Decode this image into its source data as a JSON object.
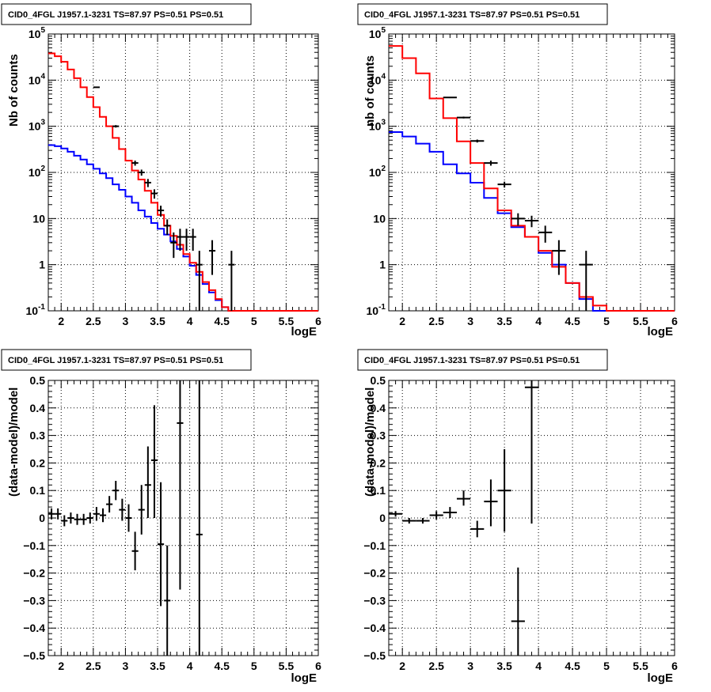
{
  "panel_title": "CID0_4FGL J1957.1-3231 TS=87.97 PS=0.51 PS=0.51",
  "colors": {
    "data": "#000000",
    "blue_model": "#0000ff",
    "red_model": "#ff0000",
    "grid": "#000000"
  },
  "chart_data": [
    {
      "type": "line",
      "title": "CID0_4FGL J1957.1-3231 TS=87.97 PS=0.51 PS=0.51",
      "xlabel": "logE",
      "ylabel": "Nb of counts",
      "xlim": [
        1.8,
        6.0
      ],
      "ylim": [
        0.1,
        100000
      ],
      "yscale": "log",
      "grid": true,
      "x_ticks": [
        "2",
        "2.5",
        "3",
        "3.5",
        "4",
        "4.5",
        "5",
        "5.5",
        "6"
      ],
      "y_ticks": [
        "10^-1",
        "1",
        "10",
        "10^2",
        "10^3",
        "10^4",
        "10^5"
      ],
      "series": [
        {
          "style": "histogram",
          "color": "blue",
          "edges": [
            1.8,
            1.9,
            2.0,
            2.1,
            2.2,
            2.3,
            2.4,
            2.5,
            2.6,
            2.7,
            2.8,
            2.9,
            3.0,
            3.1,
            3.2,
            3.3,
            3.4,
            3.5,
            3.6,
            3.7,
            3.8,
            3.9,
            4.0,
            4.1,
            4.2,
            4.3,
            4.4,
            4.5,
            4.6,
            4.7,
            4.8,
            6.0
          ],
          "values": [
            390,
            370,
            330,
            280,
            230,
            190,
            150,
            120,
            95,
            75,
            55,
            42,
            30,
            22,
            15,
            11,
            8,
            6,
            4.5,
            3.2,
            2.2,
            1.5,
            0.95,
            0.6,
            0.38,
            0.25,
            0.17,
            0.12,
            0.1,
            0.1,
            0.1
          ]
        },
        {
          "style": "histogram",
          "color": "red",
          "edges": [
            1.8,
            1.9,
            2.0,
            2.1,
            2.2,
            2.3,
            2.4,
            2.5,
            2.6,
            2.7,
            2.8,
            2.9,
            3.0,
            3.1,
            3.2,
            3.3,
            3.4,
            3.5,
            3.6,
            3.7,
            3.8,
            3.9,
            4.0,
            4.1,
            4.2,
            4.3,
            4.4,
            4.5,
            4.6,
            4.7,
            4.8,
            6.0
          ],
          "values": [
            38000,
            33000,
            25000,
            17000,
            11000,
            7000,
            4300,
            2600,
            1600,
            1000,
            560,
            320,
            180,
            110,
            70,
            40,
            22,
            12,
            7,
            4.2,
            2.7,
            1.7,
            1.1,
            0.7,
            0.42,
            0.28,
            0.18,
            0.12,
            0.1,
            0.1,
            0.1
          ]
        },
        {
          "style": "errorbars",
          "color": "black",
          "points": [
            {
              "x": 2.55,
              "y": 7000,
              "xerr": 0.05,
              "ylo": 6840,
              "yhi": 7160
            },
            {
              "x": 2.85,
              "y": 1000,
              "xerr": 0.05,
              "ylo": 940,
              "yhi": 1060
            },
            {
              "x": 3.15,
              "y": 160,
              "xerr": 0.05,
              "ylo": 140,
              "yhi": 180
            },
            {
              "x": 3.25,
              "y": 100,
              "xerr": 0.05,
              "ylo": 85,
              "yhi": 115
            },
            {
              "x": 3.35,
              "y": 60,
              "xerr": 0.05,
              "ylo": 48,
              "yhi": 72
            },
            {
              "x": 3.45,
              "y": 35,
              "xerr": 0.05,
              "ylo": 27,
              "yhi": 43
            },
            {
              "x": 3.55,
              "y": 15,
              "xerr": 0.05,
              "ylo": 11,
              "yhi": 19
            },
            {
              "x": 3.65,
              "y": 7,
              "xerr": 0.05,
              "ylo": 4.4,
              "yhi": 9.6
            },
            {
              "x": 3.75,
              "y": 3,
              "xerr": 0.05,
              "ylo": 1.4,
              "yhi": 5
            },
            {
              "x": 3.85,
              "y": 4,
              "xerr": 0.05,
              "ylo": 2,
              "yhi": 6
            },
            {
              "x": 3.95,
              "y": 4,
              "xerr": 0.05,
              "ylo": 2,
              "yhi": 6
            },
            {
              "x": 4.05,
              "y": 4,
              "xerr": 0.05,
              "ylo": 2,
              "yhi": 6
            },
            {
              "x": 4.15,
              "y": 1,
              "xerr": 0.05,
              "ylo": 0.1,
              "yhi": 2
            },
            {
              "x": 4.35,
              "y": 2,
              "xerr": 0.05,
              "ylo": 0.6,
              "yhi": 3.4
            },
            {
              "x": 4.65,
              "y": 1,
              "xerr": 0.05,
              "ylo": 0.1,
              "yhi": 2
            }
          ]
        }
      ]
    },
    {
      "type": "line",
      "title": "CID0_4FGL J1957.1-3231 TS=87.97 PS=0.51 PS=0.51",
      "xlabel": "logE",
      "ylabel": "nb of counts",
      "xlim": [
        1.8,
        6.0
      ],
      "ylim": [
        0.1,
        100000
      ],
      "yscale": "log",
      "grid": true,
      "x_ticks": [
        "2",
        "2.5",
        "3",
        "3.5",
        "4",
        "4.5",
        "5",
        "5.5",
        "6"
      ],
      "y_ticks": [
        "10^-1",
        "1",
        "10",
        "10^2",
        "10^3",
        "10^4",
        "10^5"
      ],
      "series": [
        {
          "style": "histogram",
          "color": "blue",
          "edges": [
            1.8,
            2.0,
            2.2,
            2.4,
            2.6,
            2.8,
            3.0,
            3.2,
            3.4,
            3.6,
            3.8,
            4.0,
            4.2,
            4.4,
            4.6,
            4.8,
            6.0
          ],
          "values": [
            750,
            600,
            420,
            280,
            150,
            95,
            60,
            28,
            13,
            6.5,
            4,
            1.8,
            1,
            0.4,
            0.18,
            0.1
          ]
        },
        {
          "style": "histogram",
          "color": "red",
          "edges": [
            1.8,
            2.0,
            2.2,
            2.4,
            2.6,
            2.8,
            3.0,
            3.2,
            3.4,
            3.6,
            3.8,
            4.0,
            4.2,
            4.4,
            4.6,
            4.8,
            5.0,
            6.0
          ],
          "values": [
            55000,
            30000,
            14000,
            4000,
            1500,
            470,
            160,
            45,
            15,
            7,
            4,
            2,
            0.9,
            0.4,
            0.2,
            0.13,
            0.1
          ]
        },
        {
          "style": "errorbars",
          "color": "black",
          "points": [
            {
              "x": 2.7,
              "y": 4200,
              "xerr": 0.1,
              "ylo": 4080,
              "yhi": 4320
            },
            {
              "x": 2.9,
              "y": 1550,
              "xerr": 0.1,
              "ylo": 1480,
              "yhi": 1620
            },
            {
              "x": 3.1,
              "y": 480,
              "xerr": 0.1,
              "ylo": 445,
              "yhi": 515
            },
            {
              "x": 3.3,
              "y": 160,
              "xerr": 0.1,
              "ylo": 140,
              "yhi": 180
            },
            {
              "x": 3.5,
              "y": 55,
              "xerr": 0.1,
              "ylo": 47,
              "yhi": 63
            },
            {
              "x": 3.7,
              "y": 10,
              "xerr": 0.1,
              "ylo": 7,
              "yhi": 13
            },
            {
              "x": 3.9,
              "y": 9,
              "xerr": 0.1,
              "ylo": 6.5,
              "yhi": 11.5
            },
            {
              "x": 4.1,
              "y": 5,
              "xerr": 0.1,
              "ylo": 3,
              "yhi": 7
            },
            {
              "x": 4.3,
              "y": 2,
              "xerr": 0.1,
              "ylo": 0.6,
              "yhi": 3.4
            },
            {
              "x": 4.7,
              "y": 1,
              "xerr": 0.1,
              "ylo": 0.1,
              "yhi": 2
            }
          ]
        }
      ]
    },
    {
      "type": "scatter",
      "title": "CID0_4FGL J1957.1-3231 TS=87.97 PS=0.51 PS=0.51",
      "xlabel": "logE",
      "ylabel": "(data-model)/model",
      "xlim": [
        1.8,
        6.0
      ],
      "ylim": [
        -0.5,
        0.5
      ],
      "grid": true,
      "x_ticks": [
        "2",
        "2.5",
        "3",
        "3.5",
        "4",
        "4.5",
        "5",
        "5.5",
        "6"
      ],
      "y_ticks": [
        "−0.5",
        "−0.4",
        "−0.3",
        "−0.2",
        "−0.1",
        "0",
        "0.1",
        "0.2",
        "0.3",
        "0.4",
        "0.5"
      ],
      "series": [
        {
          "style": "errorbars",
          "color": "black",
          "points": [
            {
              "x": 1.85,
              "y": 0.015,
              "xerr": 0.05,
              "ylo": -0.005,
              "yhi": 0.035
            },
            {
              "x": 1.95,
              "y": 0.015,
              "xerr": 0.05,
              "ylo": -0.005,
              "yhi": 0.035
            },
            {
              "x": 2.05,
              "y": -0.01,
              "xerr": 0.05,
              "ylo": -0.03,
              "yhi": 0.01
            },
            {
              "x": 2.15,
              "y": 0.0,
              "xerr": 0.05,
              "ylo": -0.02,
              "yhi": 0.02
            },
            {
              "x": 2.25,
              "y": -0.005,
              "xerr": 0.05,
              "ylo": -0.025,
              "yhi": 0.015
            },
            {
              "x": 2.35,
              "y": -0.005,
              "xerr": 0.05,
              "ylo": -0.025,
              "yhi": 0.015
            },
            {
              "x": 2.45,
              "y": 0.0,
              "xerr": 0.05,
              "ylo": -0.02,
              "yhi": 0.02
            },
            {
              "x": 2.55,
              "y": 0.015,
              "xerr": 0.05,
              "ylo": -0.01,
              "yhi": 0.04
            },
            {
              "x": 2.65,
              "y": 0.01,
              "xerr": 0.05,
              "ylo": -0.015,
              "yhi": 0.035
            },
            {
              "x": 2.75,
              "y": 0.05,
              "xerr": 0.05,
              "ylo": 0.02,
              "yhi": 0.08
            },
            {
              "x": 2.85,
              "y": 0.1,
              "xerr": 0.05,
              "ylo": 0.065,
              "yhi": 0.135
            },
            {
              "x": 2.95,
              "y": 0.03,
              "xerr": 0.05,
              "ylo": -0.01,
              "yhi": 0.07
            },
            {
              "x": 3.05,
              "y": 0.0,
              "xerr": 0.05,
              "ylo": -0.05,
              "yhi": 0.05
            },
            {
              "x": 3.15,
              "y": -0.12,
              "xerr": 0.05,
              "ylo": -0.19,
              "yhi": -0.05
            },
            {
              "x": 3.25,
              "y": 0.03,
              "xerr": 0.05,
              "ylo": -0.06,
              "yhi": 0.12
            },
            {
              "x": 3.35,
              "y": 0.12,
              "xerr": 0.05,
              "ylo": 0.0,
              "yhi": 0.26
            },
            {
              "x": 3.45,
              "y": 0.21,
              "xerr": 0.05,
              "ylo": 0.0,
              "yhi": 0.41
            },
            {
              "x": 3.55,
              "y": -0.095,
              "xerr": 0.05,
              "ylo": -0.32,
              "yhi": 0.13
            },
            {
              "x": 3.65,
              "y": -0.3,
              "xerr": 0.05,
              "ylo": -0.5,
              "yhi": -0.1
            },
            {
              "x": 3.85,
              "y": 0.345,
              "xerr": 0.05,
              "ylo": -0.26,
              "yhi": 0.5
            },
            {
              "x": 4.15,
              "y": -0.06,
              "xerr": 0.05,
              "ylo": -0.5,
              "yhi": 0.5
            }
          ]
        }
      ]
    },
    {
      "type": "scatter",
      "title": "CID0_4FGL J1957.1-3231 TS=87.97 PS=0.51 PS=0.51",
      "xlabel": "logE",
      "ylabel": "(data-model)/model",
      "xlim": [
        1.8,
        6.0
      ],
      "ylim": [
        -0.5,
        0.5
      ],
      "grid": true,
      "x_ticks": [
        "2",
        "2.5",
        "3",
        "3.5",
        "4",
        "4.5",
        "5",
        "5.5",
        "6"
      ],
      "y_ticks": [
        "−0.5",
        "−0.4",
        "−0.3",
        "−0.2",
        "−0.1",
        "0",
        "0.1",
        "0.2",
        "0.3",
        "0.4",
        "0.5"
      ],
      "series": [
        {
          "style": "errorbars",
          "color": "black",
          "points": [
            {
              "x": 1.9,
              "y": 0.015,
              "xerr": 0.1,
              "ylo": 0.005,
              "yhi": 0.025
            },
            {
              "x": 2.1,
              "y": -0.01,
              "xerr": 0.1,
              "ylo": -0.02,
              "yhi": 0.0
            },
            {
              "x": 2.3,
              "y": -0.01,
              "xerr": 0.1,
              "ylo": -0.02,
              "yhi": 0.0
            },
            {
              "x": 2.5,
              "y": 0.01,
              "xerr": 0.1,
              "ylo": -0.005,
              "yhi": 0.025
            },
            {
              "x": 2.7,
              "y": 0.02,
              "xerr": 0.1,
              "ylo": 0.0,
              "yhi": 0.04
            },
            {
              "x": 2.9,
              "y": 0.07,
              "xerr": 0.1,
              "ylo": 0.045,
              "yhi": 0.1
            },
            {
              "x": 3.1,
              "y": -0.04,
              "xerr": 0.1,
              "ylo": -0.07,
              "yhi": -0.01
            },
            {
              "x": 3.3,
              "y": 0.06,
              "xerr": 0.1,
              "ylo": -0.03,
              "yhi": 0.14
            },
            {
              "x": 3.5,
              "y": 0.1,
              "xerr": 0.1,
              "ylo": -0.05,
              "yhi": 0.25
            },
            {
              "x": 3.7,
              "y": -0.375,
              "xerr": 0.1,
              "ylo": -0.5,
              "yhi": -0.18
            },
            {
              "x": 3.9,
              "y": 0.475,
              "xerr": 0.1,
              "ylo": -0.02,
              "yhi": 0.5
            }
          ]
        }
      ]
    }
  ]
}
